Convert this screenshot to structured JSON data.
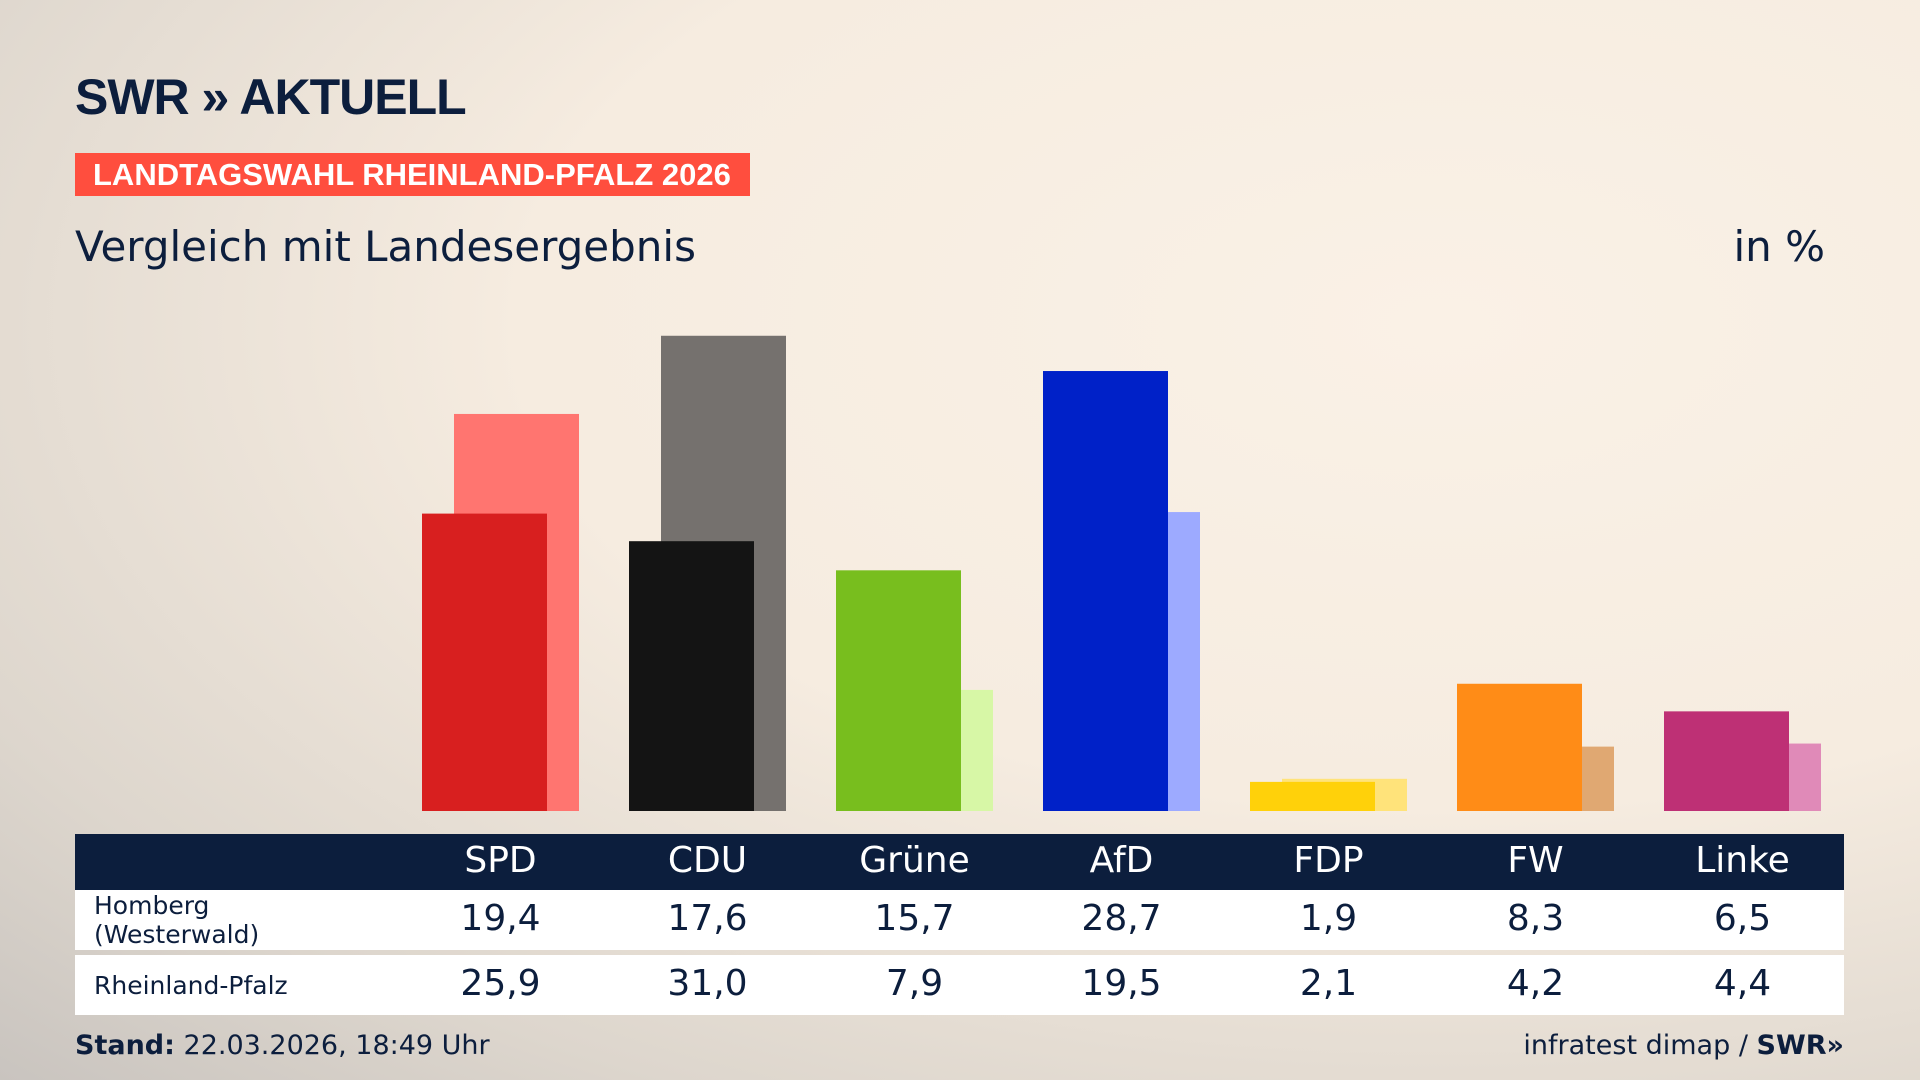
{
  "header": {
    "logo": "SWR » AKTUELL",
    "badge": "LANDTAGSWAHL RHEINLAND-PFALZ 2026",
    "subtitle": "Vergleich mit Landesergebnis",
    "unit": "in %"
  },
  "chart_data": {
    "type": "bar",
    "categories": [
      "SPD",
      "CDU",
      "Grüne",
      "AfD",
      "FDP",
      "FW",
      "Linke"
    ],
    "series": [
      {
        "name": "Homberg (Westerwald)",
        "values": [
          19.4,
          17.6,
          15.7,
          28.7,
          1.9,
          8.3,
          6.5
        ],
        "labels": [
          "19,4",
          "17,6",
          "15,7",
          "28,7",
          "1,9",
          "8,3",
          "6,5"
        ],
        "colors": [
          "#d81f1f",
          "#141414",
          "#78be1e",
          "#0021c8",
          "#ffd10a",
          "#ff8c17",
          "#be3075"
        ]
      },
      {
        "name": "Rheinland-Pfalz",
        "values": [
          25.9,
          31.0,
          7.9,
          19.5,
          2.1,
          4.2,
          4.4
        ],
        "labels": [
          "25,9",
          "31,0",
          "7,9",
          "19,5",
          "2,1",
          "4,2",
          "4,4"
        ],
        "colors": [
          "#ff7570",
          "#75716e",
          "#d7f7a6",
          "#9daaff",
          "#ffe37a",
          "#e0a872",
          "#e08ab8"
        ]
      }
    ],
    "ylim": [
      0,
      31.0
    ],
    "grid": false
  },
  "footer": {
    "stand_label": "Stand:",
    "stand_value": "22.03.2026, 18:49 Uhr",
    "source": "infratest dimap /",
    "source_logo": "SWR»"
  }
}
